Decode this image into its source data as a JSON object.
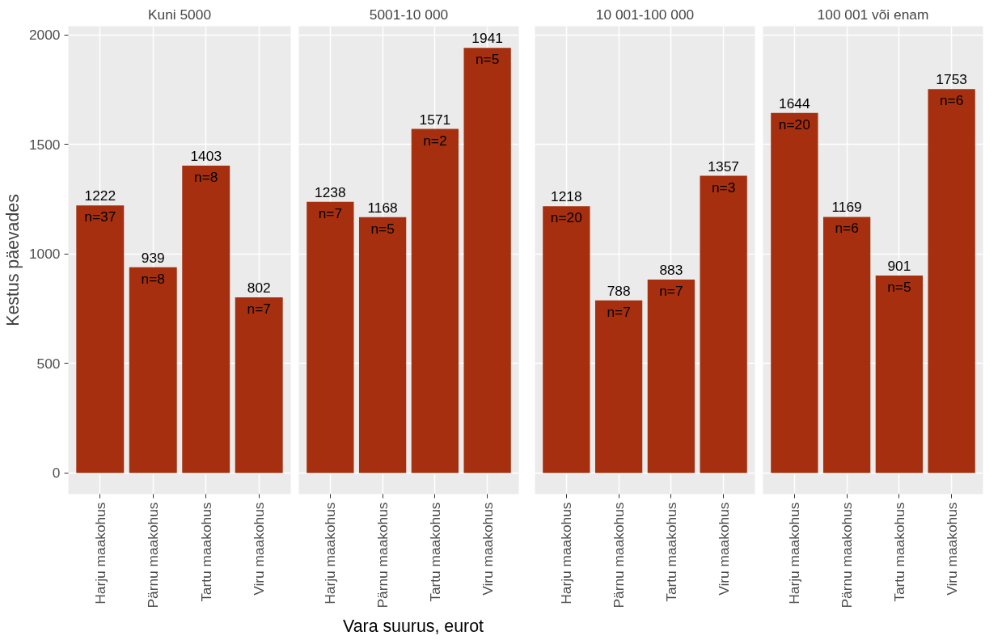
{
  "chart_data": [
    {
      "type": "bar",
      "title": "Kuni 5000",
      "ylabel": "Kestus päevades",
      "categories": [
        "Harju maakohus",
        "Pärnu maakohus",
        "Tartu maakohus",
        "Viru maakohus"
      ],
      "values": [
        1222,
        939,
        1403,
        802
      ],
      "color": "#a52f0e",
      "data_labels": true,
      "ylim": [
        -97,
        2040
      ],
      "yticks": [
        0,
        500,
        1000,
        1500,
        2000
      ],
      "grid": true,
      "annotations": [
        {
          "text": "n=37",
          "x": "Harju maakohus",
          "y": 1222
        },
        {
          "text": "n=8",
          "x": "Pärnu maakohus",
          "y": 939
        },
        {
          "text": "n=8",
          "x": "Tartu maakohus",
          "y": 1403
        },
        {
          "text": "n=7",
          "x": "Viru maakohus",
          "y": 802
        }
      ]
    },
    {
      "type": "bar",
      "title": "5001-10 000",
      "xlabel": "Vara suurus, eurot",
      "categories": [
        "Harju maakohus",
        "Pärnu maakohus",
        "Tartu maakohus",
        "Viru maakohus"
      ],
      "values": [
        1238,
        1168,
        1571,
        1941
      ],
      "color": "#a52f0e",
      "data_labels": true,
      "ylim": [
        -97,
        2040
      ],
      "yticks": [
        0,
        500,
        1000,
        1500,
        2000
      ],
      "grid": true,
      "tick_labels": "x",
      "annotations": [
        {
          "text": "n=7",
          "x": "Harju maakohus",
          "y": 1238
        },
        {
          "text": "n=5",
          "x": "Pärnu maakohus",
          "y": 1168
        },
        {
          "text": "n=2",
          "x": "Tartu maakohus",
          "y": 1571
        },
        {
          "text": "n=5",
          "x": "Viru maakohus",
          "y": 1941
        }
      ]
    },
    {
      "type": "bar",
      "title": "10 001-100 000",
      "categories": [
        "Harju maakohus",
        "Pärnu maakohus",
        "Tartu maakohus",
        "Viru maakohus"
      ],
      "values": [
        1218,
        788,
        883,
        1357
      ],
      "color": "#a52f0e",
      "data_labels": true,
      "ylim": [
        -97,
        2040
      ],
      "yticks": [
        0,
        500,
        1000,
        1500,
        2000
      ],
      "grid": true,
      "tick_labels": "x",
      "annotations": [
        {
          "text": "n=20",
          "x": "Harju maakohus",
          "y": 1218
        },
        {
          "text": "n=7",
          "x": "Pärnu maakohus",
          "y": 788
        },
        {
          "text": "n=7",
          "x": "Tartu maakohus",
          "y": 883
        },
        {
          "text": "n=3",
          "x": "Viru maakohus",
          "y": 1357
        }
      ]
    },
    {
      "type": "bar",
      "title": "100 001 või enam",
      "categories": [
        "Harju maakohus",
        "Pärnu maakohus",
        "Tartu maakohus",
        "Viru maakohus"
      ],
      "values": [
        1644,
        1169,
        901,
        1753
      ],
      "color": "#a52f0e",
      "data_labels": true,
      "ylim": [
        -97,
        2040
      ],
      "yticks": [
        0,
        500,
        1000,
        1500,
        2000
      ],
      "grid": true,
      "tick_labels": "x",
      "annotations": [
        {
          "text": "n=20",
          "x": "Harju maakohus",
          "y": 1644
        },
        {
          "text": "n=6",
          "x": "Pärnu maakohus",
          "y": 1169
        },
        {
          "text": "n=5",
          "x": "Tartu maakohus",
          "y": 901
        },
        {
          "text": "n=6",
          "x": "Viru maakohus",
          "y": 1753
        }
      ]
    }
  ]
}
